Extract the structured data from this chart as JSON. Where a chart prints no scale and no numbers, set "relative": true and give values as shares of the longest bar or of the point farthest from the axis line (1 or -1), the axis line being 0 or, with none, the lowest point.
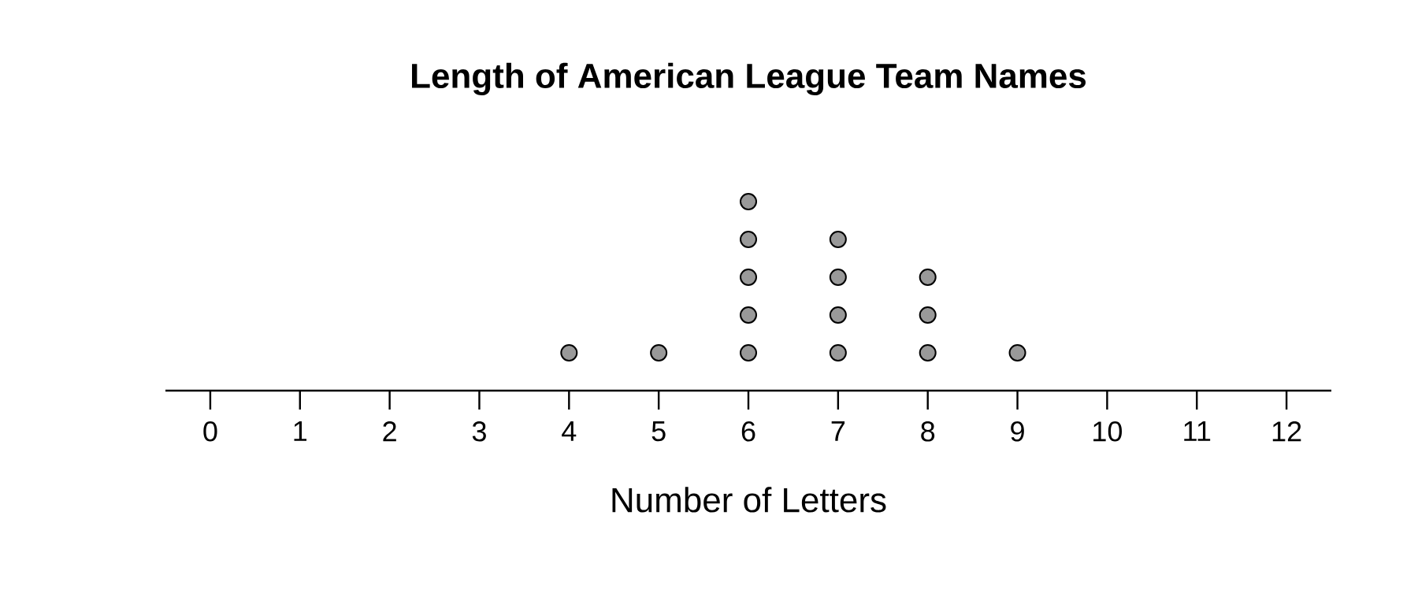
{
  "chart_data": {
    "type": "scatter",
    "title": "Length of American League Team Names",
    "xlabel": "Number of Letters",
    "x": [
      4,
      5,
      6,
      6,
      6,
      6,
      6,
      7,
      7,
      7,
      7,
      8,
      8,
      8,
      9
    ],
    "values": [
      0.2,
      0.2,
      0.2,
      0.4,
      0.6,
      0.8,
      1,
      0.2,
      0.4,
      0.6,
      0.8,
      0.2,
      0.4,
      0.6,
      0.2
    ],
    "relative": true,
    "color": "#999999",
    "marker": "circle",
    "xlim": [
      -0.5,
      12.5
    ],
    "xticks": [
      0,
      1,
      2,
      3,
      4,
      5,
      6,
      7,
      8,
      9,
      10,
      11,
      12
    ]
  }
}
